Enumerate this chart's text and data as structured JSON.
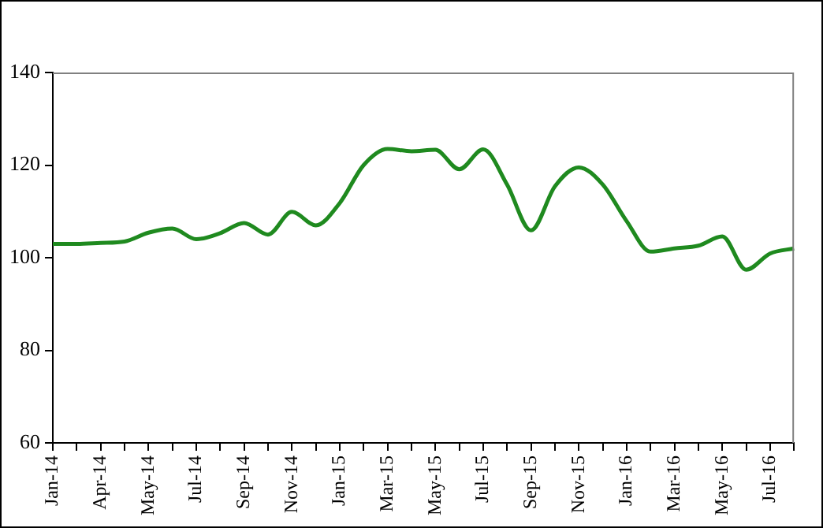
{
  "chart_data": {
    "type": "line",
    "categories": [
      "Jan-14",
      null,
      "Apr-14",
      null,
      "May-14",
      null,
      "Jul-14",
      null,
      "Sep-14",
      null,
      "Nov-14",
      null,
      "Jan-15",
      null,
      "Mar-15",
      null,
      "May-15",
      null,
      "Jul-15",
      null,
      "Sep-15",
      null,
      "Nov-15",
      null,
      "Jan-16",
      null,
      "Mar-16",
      null,
      "May-16",
      null,
      "Jul-16",
      null
    ],
    "series": [
      {
        "color": "#1f8a1f",
        "values": [
          103,
          103,
          103.2,
          103.5,
          105.4,
          106.3,
          104,
          105.3,
          107.5,
          105,
          109.9,
          107,
          111.8,
          120,
          123.5,
          123,
          123.3,
          119.1,
          123.4,
          115.8,
          105.9,
          115.4,
          119.5,
          115.8,
          107.9,
          101.3,
          102,
          102.6,
          104.6,
          97.4,
          100.9,
          102
        ]
      }
    ],
    "ylim": [
      60,
      140
    ],
    "yticks": [
      60,
      80,
      100,
      120,
      140
    ],
    "grid": false,
    "legend": false,
    "marker": "none",
    "line_style": "solid"
  }
}
